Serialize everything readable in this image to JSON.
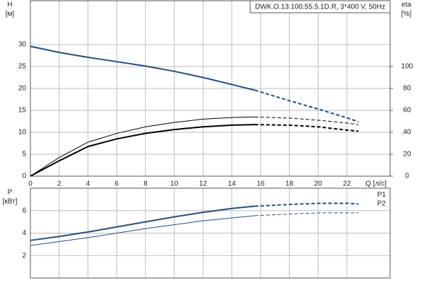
{
  "chart_data": [
    {
      "type": "line",
      "title": "DWK.O.13.100.55.5.1D.R, 3*400 V, 50Hz",
      "ylabel": "H",
      "yunit": "[м]",
      "y2label": "eta",
      "y2unit": "[%]",
      "xlabel": "Q [л/с]",
      "xlim": [
        0,
        25
      ],
      "xticks": [
        0,
        2,
        4,
        6,
        8,
        10,
        12,
        14,
        16,
        18,
        20,
        22
      ],
      "ylim": [
        0,
        40
      ],
      "yticks": [
        0,
        5,
        10,
        15,
        20,
        25,
        30
      ],
      "y2lim": [
        0,
        160
      ],
      "y2ticks": [
        0,
        20,
        40,
        60,
        80,
        100
      ],
      "grid": true,
      "series": [
        {
          "color": "#1f4e8c",
          "style": "solid",
          "width": 2,
          "x": [
            0,
            2,
            4,
            6,
            8,
            10,
            12,
            14,
            15.6
          ],
          "values": [
            29.6,
            28.2,
            27.1,
            26.1,
            25.1,
            23.9,
            22.5,
            20.9,
            19.6
          ]
        },
        {
          "color": "#1f4e8c",
          "style": "dashed",
          "width": 2,
          "x": [
            15.6,
            18,
            20,
            22,
            22.8
          ],
          "values": [
            19.6,
            17.2,
            15.3,
            13.3,
            12.4
          ]
        },
        {
          "color": "#000000",
          "style": "solid",
          "width": 1,
          "axis": "y2",
          "x": [
            0,
            2,
            4,
            6,
            8,
            10,
            12,
            14,
            15.6
          ],
          "values": [
            0,
            17,
            31,
            39,
            45,
            49,
            52,
            53.5,
            54
          ]
        },
        {
          "color": "#000000",
          "style": "dashed",
          "width": 1,
          "axis": "y2",
          "x": [
            15.6,
            18,
            20,
            22,
            22.8
          ],
          "values": [
            54,
            53,
            51,
            48.5,
            47
          ]
        },
        {
          "color": "#000000",
          "style": "solid",
          "width": 2,
          "axis": "y2",
          "x": [
            0,
            2,
            4,
            6,
            8,
            10,
            12,
            14,
            15.6
          ],
          "values": [
            0,
            14,
            27,
            34,
            39,
            42.5,
            45,
            46.5,
            47
          ]
        },
        {
          "color": "#000000",
          "style": "dashed",
          "width": 2,
          "axis": "y2",
          "x": [
            15.6,
            18,
            20,
            22,
            22.8
          ],
          "values": [
            47,
            46.5,
            45,
            42,
            41
          ]
        }
      ]
    },
    {
      "type": "line",
      "ylabel": "P",
      "yunit": "[кВт]",
      "xlim": [
        0,
        25
      ],
      "xticks": [
        0,
        2,
        4,
        6,
        8,
        10,
        12,
        14,
        16,
        18,
        20,
        22
      ],
      "ylim": [
        0,
        8
      ],
      "yticks": [
        2,
        4,
        6
      ],
      "grid": true,
      "series": [
        {
          "color": "#1f4e8c",
          "style": "solid",
          "width": 2,
          "x": [
            0,
            2,
            4,
            6,
            8,
            10,
            12,
            14,
            15.6
          ],
          "values": [
            3.35,
            3.7,
            4.1,
            4.55,
            5.0,
            5.45,
            5.85,
            6.2,
            6.4
          ]
        },
        {
          "name": "P1",
          "color": "#1f4e8c",
          "style": "dashed",
          "width": 2,
          "x": [
            15.6,
            18,
            20,
            22,
            22.8
          ],
          "values": [
            6.4,
            6.55,
            6.65,
            6.65,
            6.6
          ]
        },
        {
          "color": "#1f4e8c",
          "style": "solid",
          "width": 1,
          "x": [
            0,
            4,
            8,
            12,
            15.6
          ],
          "values": [
            2.9,
            3.6,
            4.4,
            5.1,
            5.55
          ]
        },
        {
          "name": "P2",
          "color": "#1f4e8c",
          "style": "dashed",
          "width": 1,
          "x": [
            15.6,
            18,
            20,
            22,
            22.8
          ],
          "values": [
            5.55,
            5.7,
            5.8,
            5.8,
            5.8
          ]
        }
      ]
    }
  ]
}
